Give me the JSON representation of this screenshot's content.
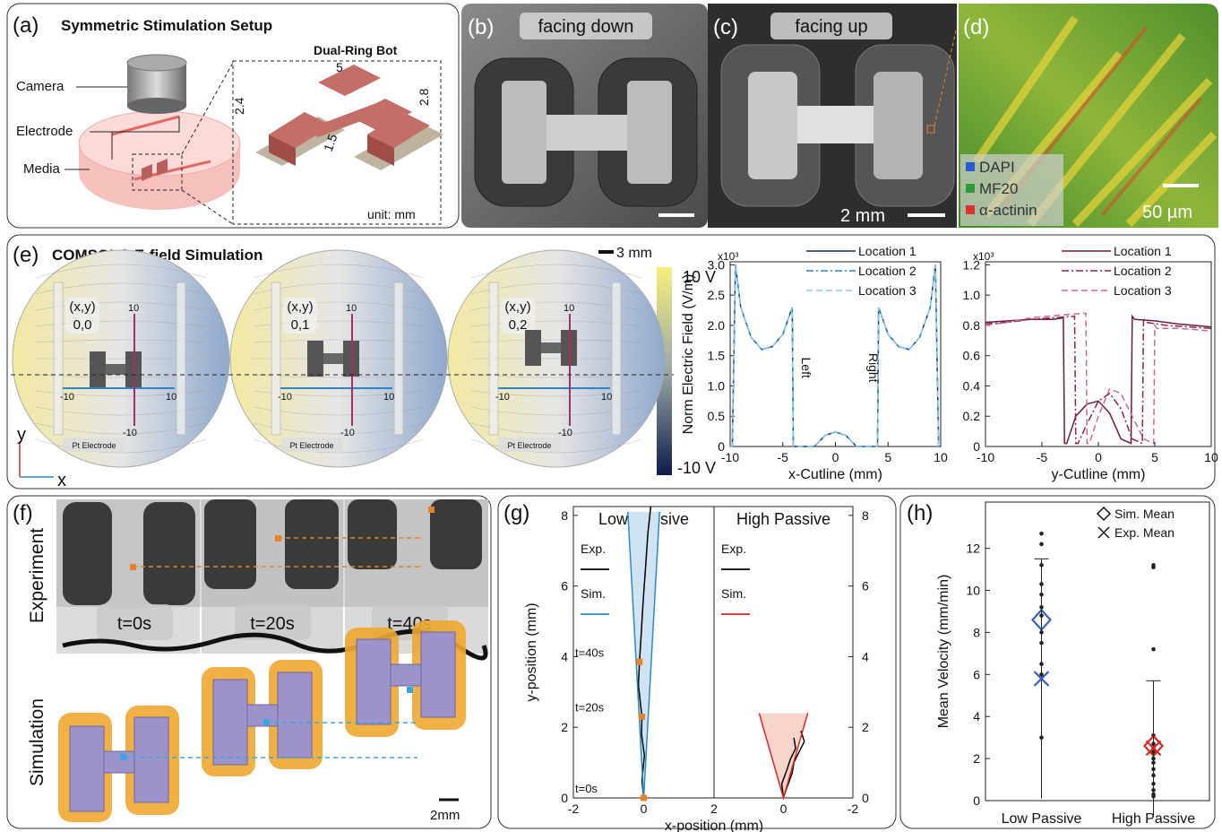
{
  "panels": {
    "a": {
      "label": "(a)",
      "title": "Symmetric Stimulation Setup",
      "inset_title": "Dual-Ring Bot",
      "labels": [
        "Camera",
        "Electrode",
        "Media"
      ],
      "dimensions": [
        "5",
        "2.4",
        "2.8",
        "1.5"
      ],
      "unit": "unit: mm"
    },
    "b": {
      "label": "(b)",
      "caption": "facing down"
    },
    "c": {
      "label": "(c)",
      "caption": "facing up",
      "scale": "2 mm"
    },
    "d": {
      "label": "(d)",
      "legend": [
        "DAPI",
        "MF20",
        "α-actinin"
      ],
      "scale": "50 µm"
    },
    "e": {
      "label": "(e)",
      "title": "COMSOL® E-field Simulation",
      "scale": "3 mm",
      "colorbar": [
        "10 V",
        "-10 V"
      ],
      "sims": [
        {
          "coord_label": "(x,y)",
          "coord": "0,0"
        },
        {
          "coord_label": "(x,y)",
          "coord": "0,1"
        },
        {
          "coord_label": "(x,y)",
          "coord": "0,2"
        }
      ],
      "axis_ticks": [
        "10",
        "-10"
      ],
      "electrode": "Pt Electrode",
      "axes": [
        "y",
        "x"
      ]
    },
    "f": {
      "label": "(f)",
      "rows": [
        "Experiment",
        "Simulation"
      ],
      "times": [
        "t=0s",
        "t=20s",
        "t=40s"
      ],
      "scale": "2mm"
    },
    "g": {
      "label": "(g)"
    },
    "h": {
      "label": "(h)"
    }
  },
  "chart_data": [
    {
      "type": "line",
      "xlabel": "x-Cutline  (mm)",
      "ylabel": "Norm Electric Field (V/m)",
      "multiplier": "x10³",
      "legend": "upper right",
      "xlim": [
        -10,
        10
      ],
      "xticks": [
        -10,
        -5,
        0,
        5,
        10
      ],
      "ylim": [
        0,
        3.05
      ],
      "yticks": [
        0,
        0.5,
        {
          "value": 1,
          "label": "1.0"
        },
        1.5,
        {
          "value": 2,
          "label": "2.0"
        },
        2.5,
        {
          "value": 3,
          "label": "3.0"
        }
      ],
      "annotations": [
        "Left",
        "Right"
      ],
      "x": [
        -10,
        -9.8,
        -9.5,
        -9,
        -8,
        -7,
        -6,
        -5,
        -4.1,
        -4,
        -3.9,
        -2,
        -1,
        0,
        1,
        2,
        3.9,
        4,
        4.1,
        5,
        6,
        7,
        8,
        9,
        9.5,
        9.8,
        10
      ],
      "series": [
        {
          "name": "Location 1",
          "color": "#1c2c66",
          "dash": "solid",
          "values": [
            0,
            0,
            3.0,
            2.3,
            1.8,
            1.6,
            1.65,
            1.85,
            2.3,
            0,
            0,
            0,
            0.18,
            0.24,
            0.18,
            0,
            0,
            0,
            2.3,
            1.85,
            1.65,
            1.6,
            1.8,
            2.3,
            3.0,
            0,
            0
          ]
        },
        {
          "name": "Location 2",
          "color": "#2e86c1",
          "dash": "dashdot",
          "values": [
            0,
            0,
            3.0,
            2.3,
            1.8,
            1.6,
            1.65,
            1.85,
            2.3,
            0,
            0,
            0,
            0.18,
            0.24,
            0.18,
            0,
            0,
            0,
            2.3,
            1.85,
            1.65,
            1.6,
            1.8,
            2.3,
            3.0,
            0,
            0
          ]
        },
        {
          "name": "Location 3",
          "color": "#8ecae6",
          "dash": "dashed",
          "values": [
            0,
            0,
            3.0,
            2.3,
            1.8,
            1.6,
            1.65,
            1.85,
            2.3,
            0,
            0,
            0,
            0.18,
            0.24,
            0.18,
            0,
            0,
            0,
            2.3,
            1.85,
            1.65,
            1.6,
            1.8,
            2.3,
            3.0,
            0,
            0
          ]
        }
      ]
    },
    {
      "type": "line",
      "xlabel": "y-Cutline  (mm)",
      "multiplier": "x10³",
      "legend": "upper right",
      "xlim": [
        -10,
        10
      ],
      "xticks": [
        -10,
        -5,
        0,
        5,
        10
      ],
      "ylim": [
        0,
        1.22
      ],
      "yticks": [
        0,
        0.2,
        0.4,
        0.6,
        0.8,
        {
          "value": 1,
          "label": "1.0"
        },
        1.2
      ],
      "series": [
        {
          "name": "Location 1",
          "color": "#6b1b3f",
          "dash": "solid",
          "x": [
            -10,
            -8,
            -6,
            -4,
            -3.1,
            -3,
            -2.8,
            -2,
            -1,
            0,
            1,
            2,
            2.9,
            3,
            3.2,
            5,
            7,
            10
          ],
          "values": [
            0.82,
            0.83,
            0.84,
            0.84,
            0.85,
            0.02,
            0.02,
            0.2,
            0.28,
            0.3,
            0.22,
            0.05,
            0.02,
            0.86,
            0.84,
            0.83,
            0.81,
            0.79
          ]
        },
        {
          "name": "Location 2",
          "color": "#8b2257",
          "dash": "dashdot",
          "x": [
            -10,
            -8,
            -6,
            -4,
            -2.1,
            -2,
            -1.8,
            -1,
            0,
            1,
            2,
            3,
            3.9,
            4,
            4.2,
            6,
            8,
            10
          ],
          "values": [
            0.81,
            0.82,
            0.84,
            0.85,
            0.86,
            0.02,
            0.02,
            0.15,
            0.3,
            0.35,
            0.25,
            0.05,
            0.02,
            0.85,
            0.82,
            0.8,
            0.79,
            0.78
          ]
        },
        {
          "name": "Location 3",
          "color": "#c76a9a",
          "dash": "dashed",
          "x": [
            -10,
            -8,
            -6,
            -3,
            -1.1,
            -1,
            -0.8,
            0,
            1,
            2,
            3,
            4,
            4.9,
            5,
            5.2,
            7,
            9,
            10
          ],
          "values": [
            0.8,
            0.82,
            0.85,
            0.87,
            0.88,
            0.02,
            0.02,
            0.2,
            0.38,
            0.35,
            0.2,
            0.05,
            0.02,
            0.8,
            0.78,
            0.78,
            0.77,
            0.76
          ]
        }
      ]
    },
    {
      "type": "line",
      "title": "Low Passive",
      "ylabel": "y-position (mm)",
      "xlabel": "x-position (mm)",
      "legend": "upper left",
      "xlim": [
        -2,
        2
      ],
      "xticks": [
        -2,
        0,
        2
      ],
      "ylim": [
        0,
        8.25
      ],
      "yticks": [
        0,
        2,
        4,
        6,
        8
      ],
      "series": [
        {
          "name": "Exp.",
          "color": "#000000",
          "x": [
            0,
            -0.05,
            0.02,
            -0.06,
            -0.05,
            -0.15,
            -0.12,
            -0.08,
            -0.02,
            0.05,
            0.12,
            0.2
          ],
          "values": [
            0,
            0.5,
            1.2,
            1.8,
            2.3,
            3.2,
            3.85,
            4.5,
            5.5,
            6.5,
            7.5,
            8.25
          ]
        },
        {
          "name": "Sim.",
          "color": "#2b8cc4",
          "fill": "#cfe3f3",
          "x": [
            -0.45,
            0,
            0.45
          ],
          "values": [
            8.1,
            0,
            8.1
          ]
        }
      ],
      "time_points": {
        "labels": [
          "t=0s",
          "t=20s",
          "t=40s"
        ],
        "x": [
          0,
          -0.05,
          -0.12
        ],
        "y": [
          0,
          2.3,
          3.85
        ],
        "color": "#e8812a"
      }
    },
    {
      "type": "line",
      "title": "High Passive",
      "legend": "upper left",
      "yaxis": "right",
      "xlim": [
        2,
        -2
      ],
      "xticks": [
        0,
        -2
      ],
      "ylim": [
        0,
        8.25
      ],
      "yticks": [
        0,
        2,
        4,
        6,
        8
      ],
      "series": [
        {
          "name": "Exp.",
          "color": "#000000",
          "x": [
            0,
            -0.1,
            -0.25,
            -0.3,
            -0.45,
            -0.6,
            -0.5,
            null,
            0,
            0.05,
            -0.1,
            -0.2,
            -0.35,
            -0.3
          ],
          "values": [
            0,
            0.3,
            0.7,
            1.0,
            1.3,
            1.6,
            1.9,
            null,
            0,
            0.4,
            0.8,
            1.1,
            1.4,
            1.7
          ]
        },
        {
          "name": "Sim.",
          "color": "#d62728",
          "fill": "#f8d5ca",
          "x": [
            0.7,
            0,
            -0.7
          ],
          "values": [
            2.4,
            0,
            2.4
          ]
        }
      ]
    },
    {
      "type": "scatter",
      "ylabel": "Mean Velocity (mm/min)",
      "legend": "upper right",
      "categories": [
        "Low Passive",
        "High Passive"
      ],
      "colors": [
        "#3a5fbf",
        "#d62728"
      ],
      "ylim": [
        0,
        14.2
      ],
      "yticks": [
        0,
        2,
        4,
        6,
        8,
        10,
        12
      ],
      "points": [
        [
          12.7,
          12.2,
          11.2,
          10.3,
          9.8,
          9.2,
          8.8,
          8,
          7.5,
          6.5,
          6,
          3
        ],
        [
          11.2,
          11.1,
          7.2,
          3.1,
          2.7,
          2.5,
          2.3,
          2,
          1.8,
          1.5,
          1.2,
          0.8,
          0.5,
          0.3,
          0.2
        ]
      ],
      "series": [
        {
          "name": "Sim. Mean",
          "marker": "diamond",
          "values": [
            8.6,
            2.6
          ]
        },
        {
          "name": "Exp. Mean",
          "marker": "x",
          "values": [
            5.8,
            2.5
          ],
          "error": [
            5.7,
            3.2
          ]
        }
      ]
    }
  ]
}
